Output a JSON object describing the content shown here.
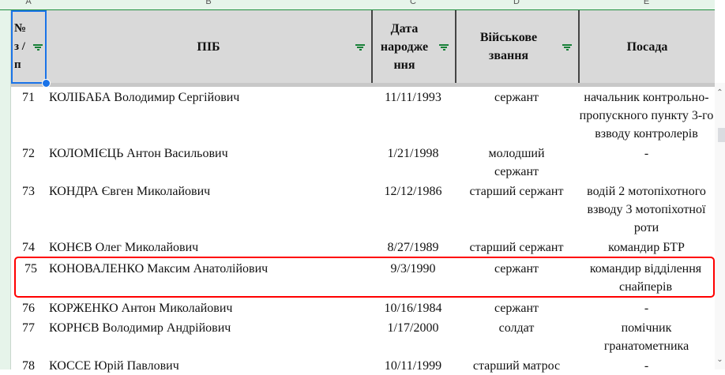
{
  "columns": [
    "A",
    "B",
    "C",
    "D",
    "E"
  ],
  "header": {
    "num": "№ з / п",
    "name": "ПІБ",
    "dob": "Дата народже ння",
    "rank": "Військове звання",
    "position": "Посада"
  },
  "rows": [
    {
      "num": "71",
      "name": "КОЛІБАБА Володимир Сергійович",
      "dob": "11/11/1993",
      "rank": "сержант",
      "position": "начальник контрольно-пропускного пункту 3-го взводу контролерів"
    },
    {
      "num": "72",
      "name": "КОЛОМІЄЦЬ Антон Васильович",
      "dob": "1/21/1998",
      "rank": "молодший сержант",
      "position": "-"
    },
    {
      "num": "73",
      "name": "КОНДРА Євген Миколайович",
      "dob": "12/12/1986",
      "rank": "старший сержант",
      "position": "водій 2 мотопіхотного взводу 3 мотопіхотної роти"
    },
    {
      "num": "74",
      "name": "КОНЄВ Олег Миколайович",
      "dob": "8/27/1989",
      "rank": "старший сержант",
      "position": "командир БТР"
    },
    {
      "num": "75",
      "name": "КОНОВАЛЕНКО Максим Анатолійович",
      "dob": "9/3/1990",
      "rank": "сержант",
      "position": "командир відділення снайперів"
    },
    {
      "num": "76",
      "name": "КОРЖЕНКО Антон Миколайович",
      "dob": "10/16/1984",
      "rank": "сержант",
      "position": "-"
    },
    {
      "num": "77",
      "name": "КОРНЄВ Володимир Андрійович",
      "dob": "1/17/2000",
      "rank": "солдат",
      "position": "помічник гранатометника"
    },
    {
      "num": "78",
      "name": "КОССЕ Юрій Павлович",
      "dob": "10/11/1999",
      "rank": "старший матрос",
      "position": "-"
    }
  ],
  "highlight_color": "#ff0000",
  "selection_color": "#1a73e8"
}
